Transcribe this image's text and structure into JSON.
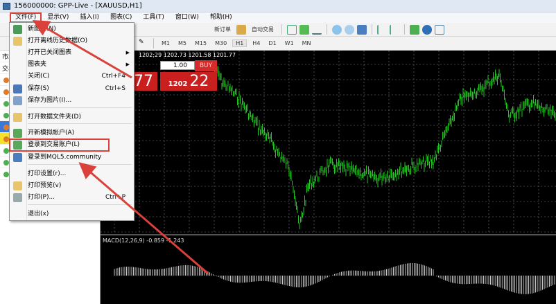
{
  "window": {
    "title": "156000000: GPP-Live - [XAUUSD,H1]"
  },
  "menubar": [
    "文件(F)",
    "显示(V)",
    "插入(I)",
    "图表(C)",
    "工具(T)",
    "窗口(W)",
    "帮助(H)"
  ],
  "toolbar": {
    "new_order": "新订单",
    "auto_trading": "自动交易",
    "timeframes": [
      "M1",
      "M5",
      "M15",
      "M30",
      "H1",
      "H4",
      "D1",
      "W1",
      "MN"
    ],
    "selected_timeframe": "H1"
  },
  "left_panel": {
    "title": "市场报价",
    "tab": "交易品种"
  },
  "chart": {
    "ohlc": "1202;29 1202.73 1201.58 1201.77",
    "lots": "1.00",
    "buy_label": "BUY",
    "sell_price_big": "77",
    "buy_price_small": "1202",
    "buy_price_big": "22",
    "indicator_label": "MACD(12,26,9) -0.859 -1.243",
    "line_color": "#22c322",
    "grid_color": "#7f7f7f"
  },
  "file_menu": {
    "items": [
      {
        "label": "新图表(N)",
        "icon": "new-chart-icon"
      },
      {
        "label": "打开离线历史数据(O)",
        "icon": "folder-icon"
      },
      {
        "label": "打开已关闭图表",
        "submenu": true
      },
      {
        "label": "图表夹",
        "submenu": true
      },
      {
        "label": "关闭(C)",
        "shortcut": "Ctrl+F4"
      },
      {
        "label": "保存(S)",
        "shortcut": "Ctrl+S",
        "icon": "save-icon"
      },
      {
        "label": "保存为图片(I)...",
        "icon": "save-picture-icon"
      },
      {
        "label": "打开数据文件夹(D)",
        "icon": "folder-icon"
      },
      {
        "label": "开新模拟帐户(A)",
        "icon": "user-add-icon"
      },
      {
        "label": "登录到交易账户(L)",
        "icon": "login-icon",
        "highlighted": true
      },
      {
        "label": "登录到MQL5.community",
        "icon": "community-icon"
      },
      {
        "label": "打印设置(r)..."
      },
      {
        "label": "打印预览(v)",
        "icon": "print-preview-icon"
      },
      {
        "label": "打印(P)...",
        "shortcut": "Ctrl+P",
        "icon": "print-icon"
      },
      {
        "label": "退出(x)"
      }
    ]
  },
  "annotation_color": "#d9413a"
}
